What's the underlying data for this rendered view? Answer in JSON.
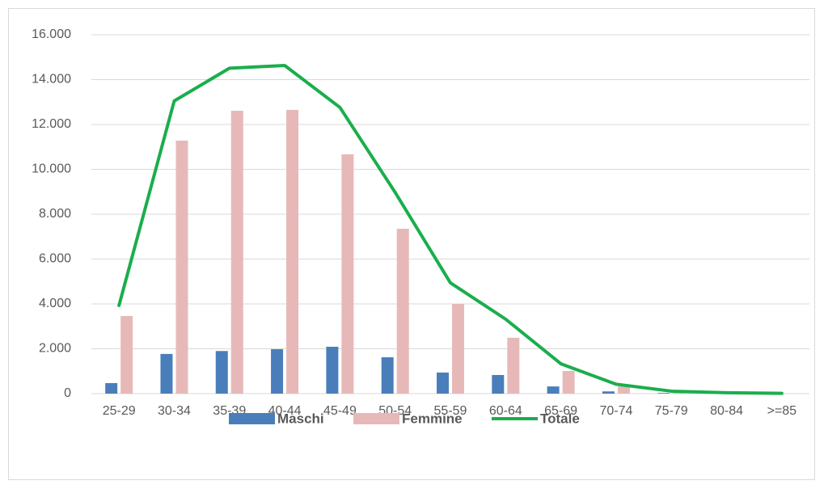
{
  "chart_data": {
    "type": "bar",
    "categories": [
      "25-29",
      "30-34",
      "35-39",
      "40-44",
      "45-49",
      "50-54",
      "55-59",
      "60-64",
      "65-69",
      "70-74",
      "75-79",
      "80-84",
      ">=85"
    ],
    "series": [
      {
        "name": "Maschi",
        "color": "#4a7ebb",
        "values": [
          470,
          1770,
          1900,
          1980,
          2090,
          1620,
          940,
          830,
          320,
          100,
          30,
          10,
          5
        ]
      },
      {
        "name": "Femmine",
        "color": "#e6b9b8",
        "values": [
          3460,
          11280,
          12610,
          12650,
          10670,
          7350,
          4000,
          2490,
          1010,
          320,
          80,
          30,
          10
        ]
      },
      {
        "name": "Totale",
        "type": "line",
        "color": "#1aae4c",
        "values": [
          3930,
          13050,
          14510,
          14630,
          12760,
          8970,
          4940,
          3320,
          1330,
          420,
          110,
          40,
          15
        ]
      }
    ],
    "ylim": [
      0,
      16000
    ],
    "yticks": [
      0,
      {
        "value": 2000,
        "label": "2.000"
      },
      {
        "value": 4000,
        "label": "4.000"
      },
      {
        "value": 6000,
        "label": "6.000"
      },
      {
        "value": 8000,
        "label": "8.000"
      },
      {
        "value": 10000,
        "label": "10.000"
      },
      {
        "value": 12000,
        "label": "12.000"
      },
      {
        "value": 14000,
        "label": "14.000"
      },
      {
        "value": 16000,
        "label": "16.000"
      }
    ],
    "grid": true,
    "legend": "bottom"
  }
}
